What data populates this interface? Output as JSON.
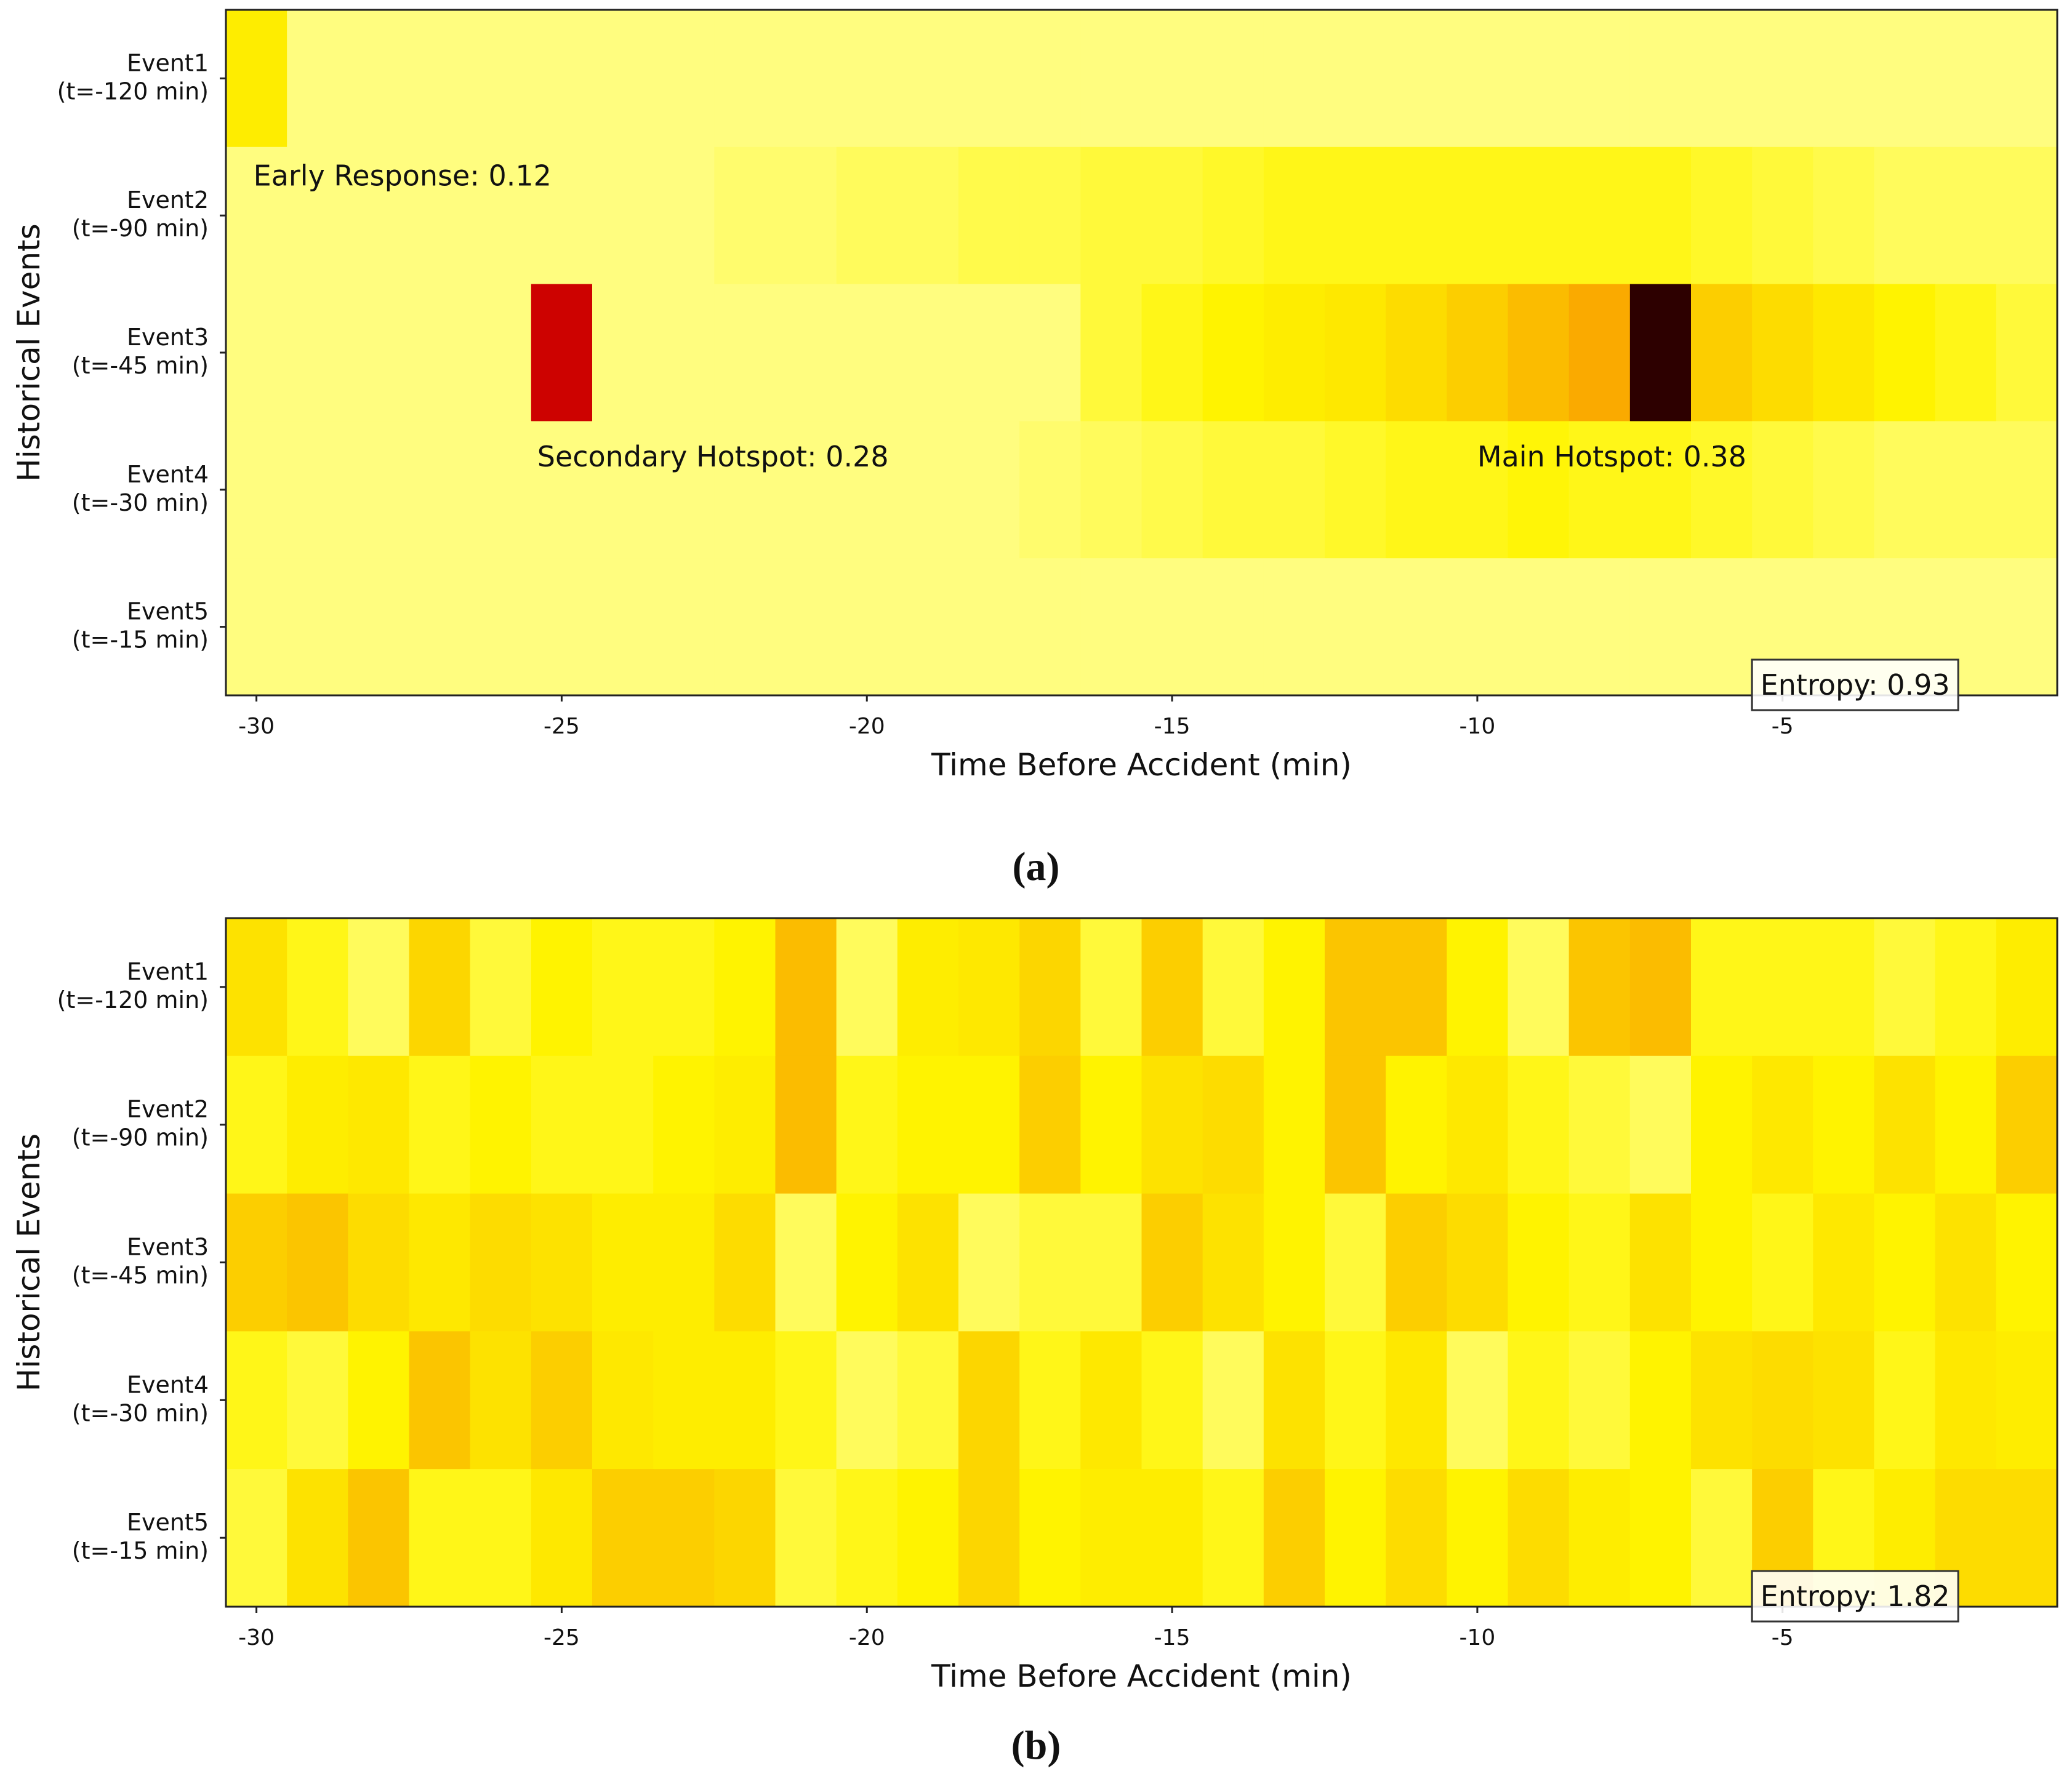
{
  "chart_data": [
    {
      "type": "heatmap",
      "panel": "(a)",
      "xlabel": "Time Before Accident (min)",
      "ylabel": "Historical Events",
      "x_tick_labels": [
        "-30",
        "-25",
        "-20",
        "-15",
        "-10",
        "-5"
      ],
      "x_tick_values": [
        -30,
        -25,
        -20,
        -15,
        -10,
        -5
      ],
      "x_range": [
        -30.5,
        -0.5
      ],
      "columns": 30,
      "rows": [
        {
          "line1": "Event1",
          "line2": "(t=-120 min)"
        },
        {
          "line1": "Event2",
          "line2": "(t=-90 min)"
        },
        {
          "line1": "Event3",
          "line2": "(t=-45 min)"
        },
        {
          "line1": "Event4",
          "line2": "(t=-30 min)"
        },
        {
          "line1": "Event5",
          "line2": "(t=-15 min)"
        }
      ],
      "colormap": "hot_r",
      "vmax": 0.38,
      "values": [
        [
          0.07,
          0.02,
          0.02,
          0.02,
          0.02,
          0.02,
          0.02,
          0.02,
          0.02,
          0.02,
          0.02,
          0.02,
          0.02,
          0.02,
          0.02,
          0.02,
          0.02,
          0.02,
          0.02,
          0.02,
          0.02,
          0.02,
          0.02,
          0.02,
          0.02,
          0.02,
          0.02,
          0.02,
          0.02,
          0.02
        ],
        [
          0.02,
          0.02,
          0.02,
          0.02,
          0.02,
          0.02,
          0.02,
          0.02,
          0.025,
          0.025,
          0.03,
          0.03,
          0.035,
          0.035,
          0.04,
          0.04,
          0.045,
          0.05,
          0.05,
          0.05,
          0.05,
          0.05,
          0.05,
          0.05,
          0.045,
          0.04,
          0.035,
          0.03,
          0.03,
          0.03
        ],
        [
          0.02,
          0.02,
          0.02,
          0.02,
          0.02,
          0.28,
          0.02,
          0.02,
          0.02,
          0.02,
          0.02,
          0.02,
          0.02,
          0.02,
          0.04,
          0.05,
          0.06,
          0.07,
          0.08,
          0.1,
          0.12,
          0.14,
          0.16,
          0.38,
          0.12,
          0.1,
          0.08,
          0.06,
          0.05,
          0.04
        ],
        [
          0.02,
          0.02,
          0.02,
          0.02,
          0.02,
          0.02,
          0.02,
          0.02,
          0.02,
          0.02,
          0.02,
          0.02,
          0.02,
          0.025,
          0.03,
          0.035,
          0.04,
          0.04,
          0.045,
          0.05,
          0.05,
          0.055,
          0.05,
          0.05,
          0.045,
          0.04,
          0.035,
          0.03,
          0.03,
          0.03
        ],
        [
          0.02,
          0.02,
          0.02,
          0.02,
          0.02,
          0.02,
          0.02,
          0.02,
          0.02,
          0.02,
          0.02,
          0.02,
          0.02,
          0.02,
          0.02,
          0.02,
          0.02,
          0.02,
          0.02,
          0.02,
          0.02,
          0.02,
          0.02,
          0.02,
          0.02,
          0.02,
          0.02,
          0.02,
          0.02,
          0.02
        ]
      ],
      "annotations": [
        {
          "text": "Early Response: 0.12",
          "x": -30.05,
          "row": 1.2
        },
        {
          "text": "Secondary Hotspot: 0.28",
          "x": -25.4,
          "row": 3.25
        },
        {
          "text": "Main Hotspot: 0.38",
          "x": -10.0,
          "row": 3.25
        }
      ],
      "entropy_label": "Entropy: 0.93",
      "entropy_box_position": "bottom-right"
    },
    {
      "type": "heatmap",
      "panel": "(b)",
      "xlabel": "Time Before Accident (min)",
      "ylabel": "Historical Events",
      "x_tick_labels": [
        "-30",
        "-25",
        "-20",
        "-15",
        "-10",
        "-5"
      ],
      "x_tick_values": [
        -30,
        -25,
        -20,
        -15,
        -10,
        -5
      ],
      "x_range": [
        -30.5,
        -0.5
      ],
      "columns": 30,
      "rows": [
        {
          "line1": "Event1",
          "line2": "(t=-120 min)"
        },
        {
          "line1": "Event2",
          "line2": "(t=-90 min)"
        },
        {
          "line1": "Event3",
          "line2": "(t=-45 min)"
        },
        {
          "line1": "Event4",
          "line2": "(t=-30 min)"
        },
        {
          "line1": "Event5",
          "line2": "(t=-15 min)"
        }
      ],
      "colormap": "hot_r",
      "vmax": 0.38,
      "values": [
        [
          0.09,
          0.05,
          0.03,
          0.11,
          0.04,
          0.06,
          0.05,
          0.05,
          0.06,
          0.14,
          0.03,
          0.07,
          0.08,
          0.11,
          0.04,
          0.12,
          0.04,
          0.06,
          0.13,
          0.13,
          0.06,
          0.03,
          0.13,
          0.14,
          0.05,
          0.05,
          0.05,
          0.04,
          0.05,
          0.07
        ],
        [
          0.05,
          0.07,
          0.08,
          0.05,
          0.06,
          0.05,
          0.05,
          0.06,
          0.07,
          0.14,
          0.05,
          0.06,
          0.06,
          0.12,
          0.06,
          0.09,
          0.1,
          0.06,
          0.13,
          0.06,
          0.08,
          0.05,
          0.04,
          0.03,
          0.06,
          0.08,
          0.06,
          0.09,
          0.06,
          0.12
        ],
        [
          0.12,
          0.13,
          0.1,
          0.08,
          0.1,
          0.09,
          0.07,
          0.07,
          0.1,
          0.03,
          0.06,
          0.09,
          0.03,
          0.04,
          0.04,
          0.12,
          0.09,
          0.06,
          0.04,
          0.12,
          0.1,
          0.06,
          0.05,
          0.09,
          0.06,
          0.05,
          0.08,
          0.06,
          0.09,
          0.06
        ],
        [
          0.05,
          0.04,
          0.06,
          0.13,
          0.09,
          0.12,
          0.08,
          0.07,
          0.07,
          0.05,
          0.03,
          0.04,
          0.11,
          0.05,
          0.08,
          0.05,
          0.03,
          0.09,
          0.05,
          0.08,
          0.03,
          0.05,
          0.04,
          0.06,
          0.09,
          0.1,
          0.09,
          0.05,
          0.08,
          0.07
        ],
        [
          0.04,
          0.09,
          0.13,
          0.05,
          0.05,
          0.08,
          0.12,
          0.12,
          0.11,
          0.04,
          0.05,
          0.06,
          0.11,
          0.06,
          0.07,
          0.07,
          0.05,
          0.12,
          0.06,
          0.1,
          0.06,
          0.1,
          0.07,
          0.06,
          0.04,
          0.12,
          0.05,
          0.07,
          0.1,
          0.1
        ]
      ],
      "annotations": [],
      "entropy_label": "Entropy: 1.82",
      "entropy_box_position": "bottom-right"
    }
  ]
}
